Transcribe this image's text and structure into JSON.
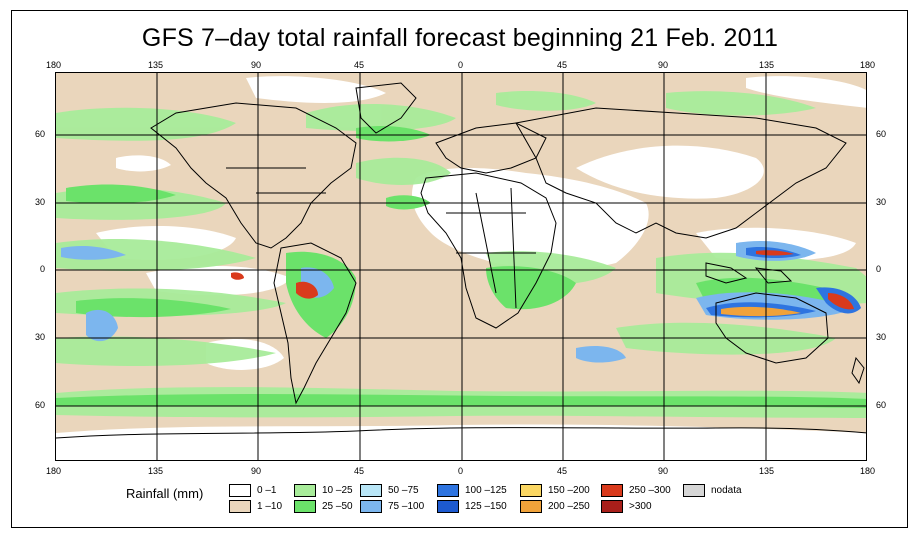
{
  "title": "GFS 7–day total rainfall forecast beginning 21 Feb. 2011",
  "axes": {
    "lon_top": [
      "180",
      "135",
      "90",
      "45",
      "0",
      "45",
      "90",
      "135",
      "180"
    ],
    "lon_bottom": [
      "180",
      "135",
      "90",
      "45",
      "0",
      "45",
      "90",
      "135",
      "180"
    ],
    "lat_left": [
      "60",
      "30",
      "0",
      "30",
      "60"
    ],
    "lat_right": [
      "60",
      "30",
      "0",
      "30",
      "60"
    ]
  },
  "colors": {
    "ocean_dry": "#ffffff",
    "light": "#ead6bc",
    "green_light": "#a8ec9a",
    "green": "#6be26a",
    "blue_light": "#b9e6f7",
    "blue": "#7cb6ee",
    "blue_deep": "#2e74e0",
    "orange": "#f0a23a",
    "red": "#d93a1c",
    "outline": "#000000"
  },
  "legend": {
    "title": "Rainfall (mm)",
    "items": [
      {
        "label": "0 –1",
        "color": "#ffffff"
      },
      {
        "label": "1 –10",
        "color": "#ead6bc"
      },
      {
        "label": "10 –25",
        "color": "#a8ec9a"
      },
      {
        "label": "25 –50",
        "color": "#6be26a"
      },
      {
        "label": "50 –75",
        "color": "#b9e6f7"
      },
      {
        "label": "75 –100",
        "color": "#7cb6ee"
      },
      {
        "label": "100 –125",
        "color": "#2e74e0"
      },
      {
        "label": "125 –150",
        "color": "#1d5ad0"
      },
      {
        "label": "150 –200",
        "color": "#fbd763"
      },
      {
        "label": "200 –250",
        "color": "#f0a23a"
      },
      {
        "label": "250 –300",
        "color": "#d93a1c"
      },
      {
        "label": ">300",
        "color": "#a81f1a"
      },
      {
        "label": "nodata",
        "color": "#d6d6d6"
      }
    ]
  }
}
